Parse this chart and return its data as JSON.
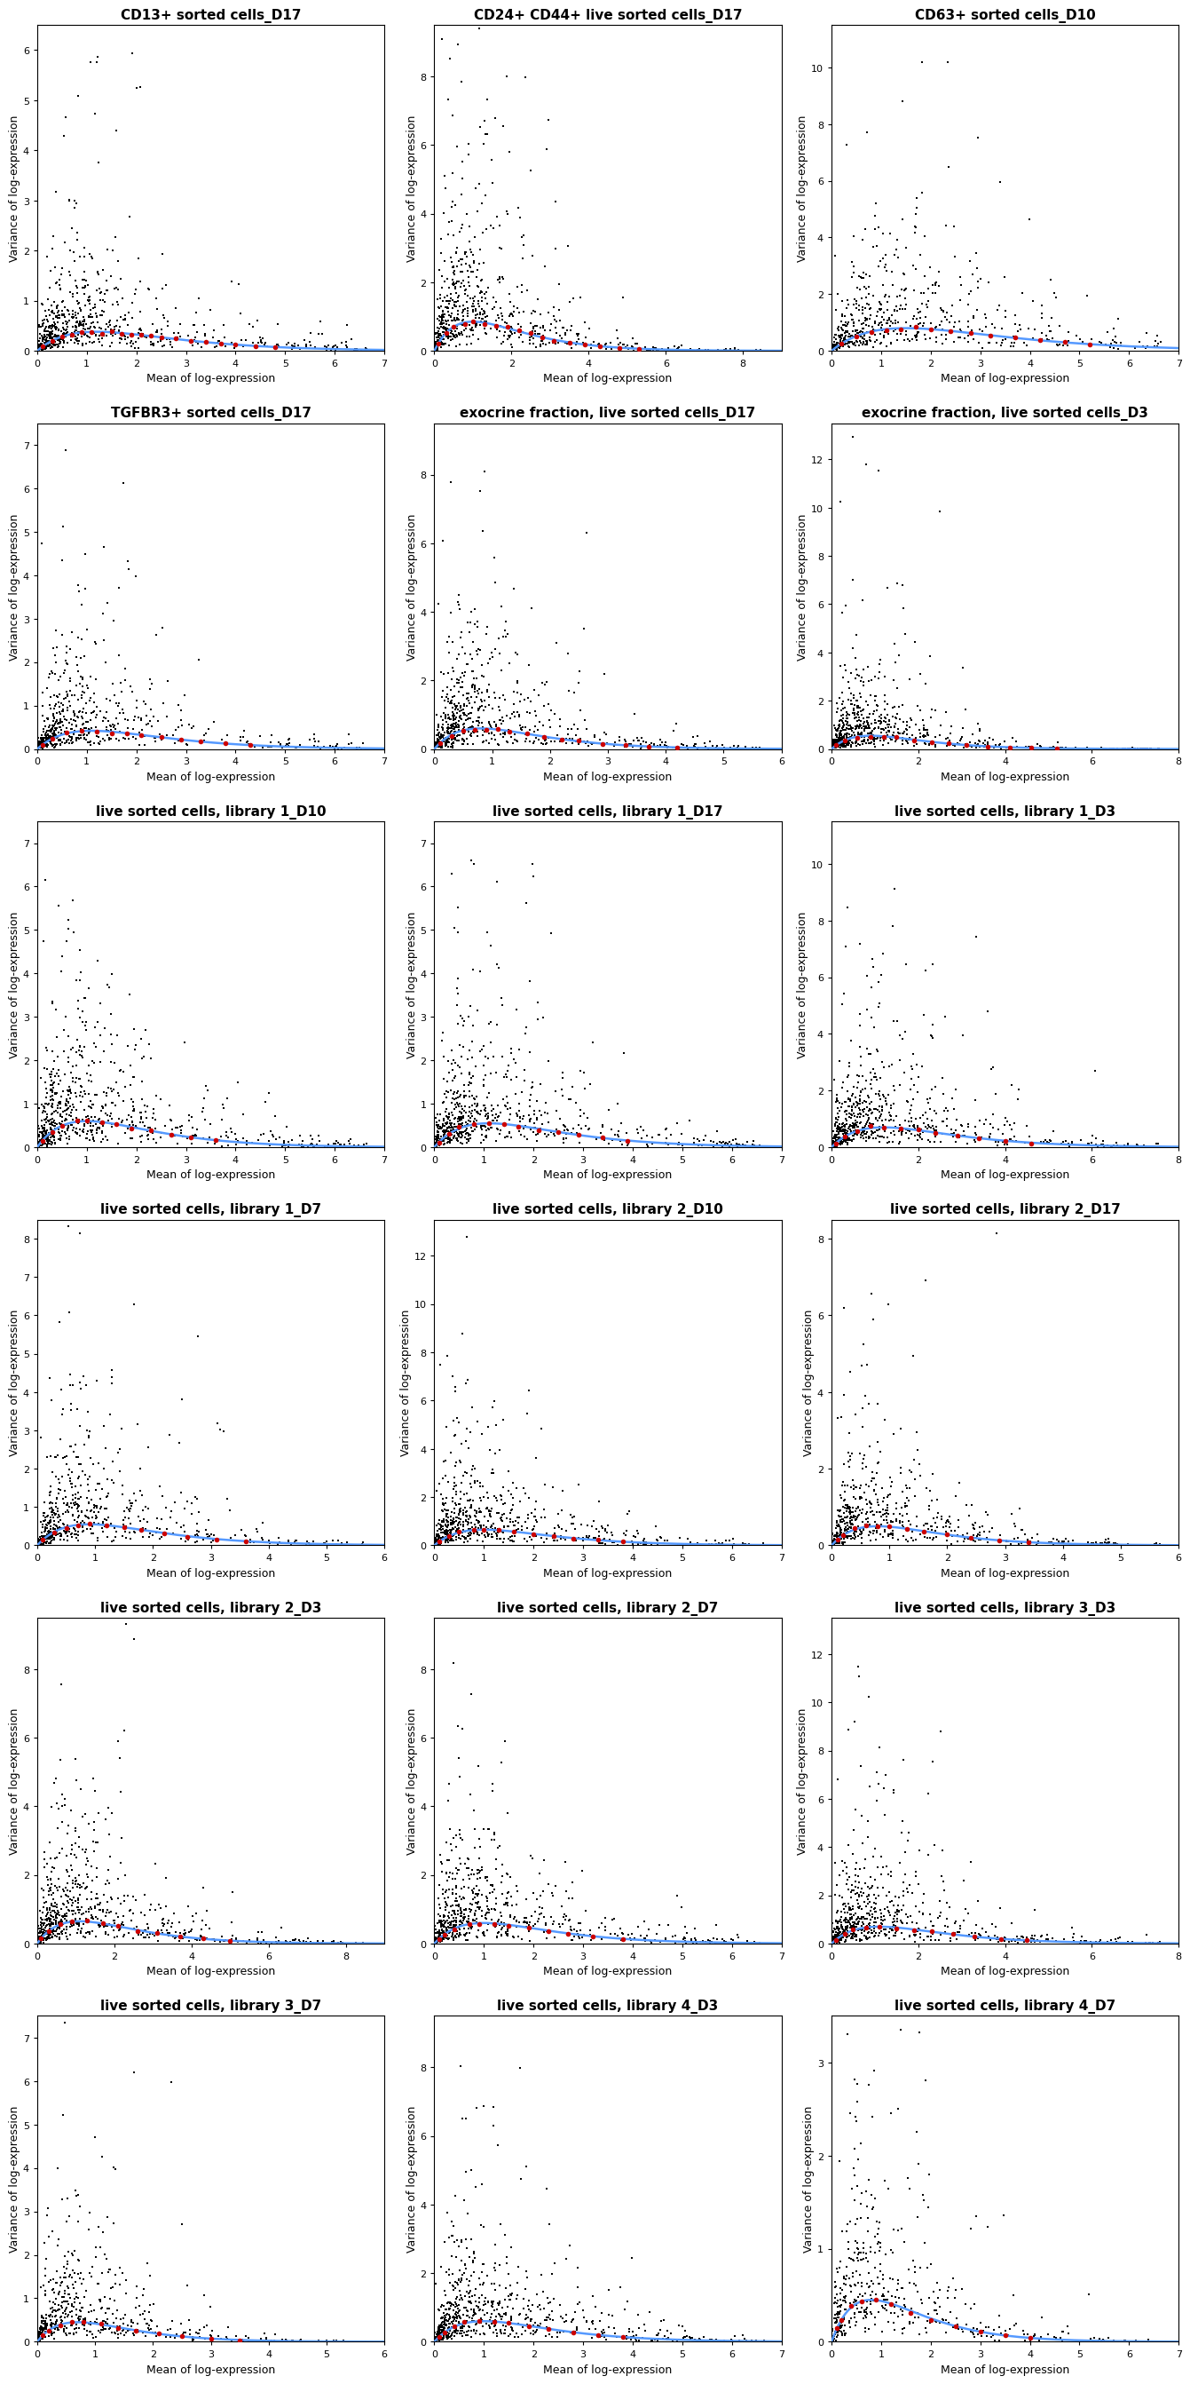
{
  "subplots": [
    {
      "title": "CD13+ sorted cells_D17",
      "xlim": [
        0,
        7
      ],
      "ylim": [
        -0.1,
        6.5
      ],
      "xticks": [
        0,
        1,
        2,
        3,
        4,
        5,
        6,
        7
      ],
      "yticks": [
        0,
        1,
        2,
        3,
        4,
        5,
        6
      ],
      "n_black": 700,
      "seed": 1,
      "mean_scale": 1.0,
      "var_max_mult": 4.0,
      "spike_means": [
        0.1,
        0.3,
        0.5,
        0.7,
        0.9,
        1.1,
        1.3,
        1.5,
        1.7,
        1.9,
        2.1,
        2.3,
        2.5,
        2.8,
        3.1,
        3.4,
        3.7,
        4.0,
        4.4,
        4.8
      ],
      "trend_peak_x": 1.2,
      "trend_peak_y": 0.38
    },
    {
      "title": "CD24+ CD44+ live sorted cells_D17",
      "xlim": [
        0,
        9
      ],
      "ylim": [
        -0.1,
        9.5
      ],
      "xticks": [
        0,
        2,
        4,
        6,
        8
      ],
      "yticks": [
        0,
        2,
        4,
        6,
        8
      ],
      "n_black": 700,
      "seed": 2,
      "mean_scale": 1.2,
      "var_max_mult": 5.0,
      "spike_means": [
        0.1,
        0.3,
        0.5,
        0.8,
        1.0,
        1.3,
        1.6,
        1.9,
        2.2,
        2.5,
        2.8,
        3.1,
        3.5,
        3.9,
        4.3,
        4.8,
        5.3
      ],
      "trend_peak_x": 1.0,
      "trend_peak_y": 0.85
    },
    {
      "title": "CD63+ sorted cells_D10",
      "xlim": [
        0,
        7
      ],
      "ylim": [
        -0.1,
        11.5
      ],
      "xticks": [
        0,
        1,
        2,
        3,
        4,
        5,
        6,
        7
      ],
      "yticks": [
        0,
        2,
        4,
        6,
        8,
        10
      ],
      "n_black": 600,
      "seed": 3,
      "mean_scale": 1.3,
      "var_max_mult": 6.0,
      "spike_means": [
        0.2,
        0.5,
        0.8,
        1.1,
        1.4,
        1.7,
        2.0,
        2.4,
        2.8,
        3.2,
        3.7,
        4.2,
        4.7,
        5.2
      ],
      "trend_peak_x": 1.5,
      "trend_peak_y": 0.8
    },
    {
      "title": "TGFBR3+ sorted cells_D17",
      "xlim": [
        0,
        7
      ],
      "ylim": [
        -0.1,
        7.5
      ],
      "xticks": [
        0,
        1,
        2,
        3,
        4,
        5,
        6,
        7
      ],
      "yticks": [
        0,
        1,
        2,
        3,
        4,
        5,
        6,
        7
      ],
      "n_black": 600,
      "seed": 4,
      "mean_scale": 1.0,
      "var_max_mult": 4.5,
      "spike_means": [
        0.1,
        0.3,
        0.6,
        0.9,
        1.2,
        1.5,
        1.8,
        2.1,
        2.5,
        2.9,
        3.3,
        3.8,
        4.3
      ],
      "trend_peak_x": 1.1,
      "trend_peak_y": 0.42
    },
    {
      "title": "exocrine fraction, live sorted cells_D17",
      "xlim": [
        0,
        6
      ],
      "ylim": [
        -0.1,
        9.5
      ],
      "xticks": [
        0,
        1,
        2,
        3,
        4,
        5,
        6
      ],
      "yticks": [
        0,
        2,
        4,
        6,
        8
      ],
      "n_black": 700,
      "seed": 5,
      "mean_scale": 0.9,
      "var_max_mult": 5.0,
      "spike_means": [
        0.1,
        0.3,
        0.5,
        0.7,
        0.9,
        1.1,
        1.3,
        1.6,
        1.9,
        2.2,
        2.5,
        2.9,
        3.3,
        3.7,
        4.2
      ],
      "trend_peak_x": 0.8,
      "trend_peak_y": 0.6
    },
    {
      "title": "exocrine fraction, live sorted cells_D3",
      "xlim": [
        0,
        8
      ],
      "ylim": [
        -0.1,
        13.5
      ],
      "xticks": [
        0,
        2,
        4,
        6,
        8
      ],
      "yticks": [
        0,
        2,
        4,
        6,
        8,
        10,
        12
      ],
      "n_black": 700,
      "seed": 6,
      "mean_scale": 1.1,
      "var_max_mult": 6.0,
      "spike_means": [
        0.1,
        0.3,
        0.6,
        0.9,
        1.2,
        1.5,
        1.9,
        2.3,
        2.7,
        3.1,
        3.6,
        4.1,
        4.6,
        5.2
      ],
      "trend_peak_x": 0.9,
      "trend_peak_y": 0.55
    },
    {
      "title": "live sorted cells, library 1_D10",
      "xlim": [
        0,
        7
      ],
      "ylim": [
        -0.1,
        7.5
      ],
      "xticks": [
        0,
        1,
        2,
        3,
        4,
        5,
        6,
        7
      ],
      "yticks": [
        0,
        1,
        2,
        3,
        4,
        5,
        6,
        7
      ],
      "n_black": 700,
      "seed": 7,
      "mean_scale": 1.1,
      "var_max_mult": 4.0,
      "spike_means": [
        0.1,
        0.3,
        0.5,
        0.8,
        1.0,
        1.3,
        1.6,
        1.9,
        2.3,
        2.7,
        3.1,
        3.6
      ],
      "trend_peak_x": 1.0,
      "trend_peak_y": 0.6
    },
    {
      "title": "live sorted cells, library 1_D17",
      "xlim": [
        0,
        7
      ],
      "ylim": [
        -0.1,
        7.5
      ],
      "xticks": [
        0,
        1,
        2,
        3,
        4,
        5,
        6,
        7
      ],
      "yticks": [
        0,
        1,
        2,
        3,
        4,
        5,
        6,
        7
      ],
      "n_black": 700,
      "seed": 8,
      "mean_scale": 1.1,
      "var_max_mult": 4.0,
      "spike_means": [
        0.1,
        0.3,
        0.5,
        0.8,
        1.1,
        1.4,
        1.7,
        2.1,
        2.5,
        2.9,
        3.4,
        3.9
      ],
      "trend_peak_x": 1.1,
      "trend_peak_y": 0.55
    },
    {
      "title": "live sorted cells, library 1_D3",
      "xlim": [
        0,
        8
      ],
      "ylim": [
        -0.1,
        11.5
      ],
      "xticks": [
        0,
        2,
        4,
        6,
        8
      ],
      "yticks": [
        0,
        2,
        4,
        6,
        8,
        10
      ],
      "n_black": 700,
      "seed": 9,
      "mean_scale": 1.2,
      "var_max_mult": 5.5,
      "spike_means": [
        0.1,
        0.3,
        0.6,
        0.9,
        1.2,
        1.6,
        2.0,
        2.4,
        2.9,
        3.4,
        4.0,
        4.6
      ],
      "trend_peak_x": 1.2,
      "trend_peak_y": 0.7
    },
    {
      "title": "live sorted cells, library 1_D7",
      "xlim": [
        0,
        6
      ],
      "ylim": [
        -0.1,
        8.5
      ],
      "xticks": [
        0,
        1,
        2,
        3,
        4,
        5,
        6
      ],
      "yticks": [
        0,
        1,
        2,
        3,
        4,
        5,
        6,
        7,
        8
      ],
      "n_black": 600,
      "seed": 10,
      "mean_scale": 0.9,
      "var_max_mult": 4.5,
      "spike_means": [
        0.1,
        0.3,
        0.5,
        0.7,
        0.9,
        1.2,
        1.5,
        1.8,
        2.2,
        2.6,
        3.1,
        3.6
      ],
      "trend_peak_x": 0.9,
      "trend_peak_y": 0.55
    },
    {
      "title": "live sorted cells, library 2_D10",
      "xlim": [
        0,
        7
      ],
      "ylim": [
        -0.1,
        13.5
      ],
      "xticks": [
        0,
        1,
        2,
        3,
        4,
        5,
        6,
        7
      ],
      "yticks": [
        0,
        2,
        4,
        6,
        8,
        10,
        12
      ],
      "n_black": 700,
      "seed": 11,
      "mean_scale": 1.0,
      "var_max_mult": 6.0,
      "spike_means": [
        0.1,
        0.3,
        0.5,
        0.8,
        1.0,
        1.3,
        1.6,
        2.0,
        2.4,
        2.8,
        3.3,
        3.8
      ],
      "trend_peak_x": 1.0,
      "trend_peak_y": 0.65
    },
    {
      "title": "live sorted cells, library 2_D17",
      "xlim": [
        0,
        6
      ],
      "ylim": [
        -0.1,
        8.5
      ],
      "xticks": [
        0,
        1,
        2,
        3,
        4,
        5,
        6
      ],
      "yticks": [
        0,
        2,
        4,
        6,
        8
      ],
      "n_black": 600,
      "seed": 12,
      "mean_scale": 0.9,
      "var_max_mult": 4.5,
      "spike_means": [
        0.1,
        0.2,
        0.4,
        0.6,
        0.8,
        1.0,
        1.3,
        1.6,
        2.0,
        2.4,
        2.9,
        3.4
      ],
      "trend_peak_x": 0.8,
      "trend_peak_y": 0.5
    },
    {
      "title": "live sorted cells, library 2_D3",
      "xlim": [
        0,
        9
      ],
      "ylim": [
        -0.1,
        9.5
      ],
      "xticks": [
        0,
        2,
        4,
        6,
        8
      ],
      "yticks": [
        0,
        2,
        4,
        6,
        8
      ],
      "n_black": 700,
      "seed": 13,
      "mean_scale": 1.3,
      "var_max_mult": 5.0,
      "spike_means": [
        0.1,
        0.3,
        0.6,
        0.9,
        1.3,
        1.7,
        2.1,
        2.6,
        3.1,
        3.7,
        4.3,
        5.0
      ],
      "trend_peak_x": 1.1,
      "trend_peak_y": 0.65
    },
    {
      "title": "live sorted cells, library 2_D7",
      "xlim": [
        0,
        7
      ],
      "ylim": [
        -0.1,
        9.5
      ],
      "xticks": [
        0,
        1,
        2,
        3,
        4,
        5,
        6,
        7
      ],
      "yticks": [
        0,
        2,
        4,
        6,
        8
      ],
      "n_black": 700,
      "seed": 14,
      "mean_scale": 1.0,
      "var_max_mult": 5.0,
      "spike_means": [
        0.1,
        0.2,
        0.4,
        0.7,
        0.9,
        1.2,
        1.5,
        1.9,
        2.3,
        2.7,
        3.2,
        3.8
      ],
      "trend_peak_x": 1.0,
      "trend_peak_y": 0.6
    },
    {
      "title": "live sorted cells, library 3_D3",
      "xlim": [
        0,
        8
      ],
      "ylim": [
        -0.1,
        13.5
      ],
      "xticks": [
        0,
        2,
        4,
        6,
        8
      ],
      "yticks": [
        0,
        2,
        4,
        6,
        8,
        10,
        12
      ],
      "n_black": 700,
      "seed": 15,
      "mean_scale": 1.2,
      "var_max_mult": 6.0,
      "spike_means": [
        0.1,
        0.3,
        0.5,
        0.8,
        1.1,
        1.5,
        1.9,
        2.3,
        2.8,
        3.3,
        3.9,
        4.5
      ],
      "trend_peak_x": 1.1,
      "trend_peak_y": 0.7
    },
    {
      "title": "live sorted cells, library 3_D7",
      "xlim": [
        0,
        6
      ],
      "ylim": [
        -0.1,
        7.5
      ],
      "xticks": [
        0,
        1,
        2,
        3,
        4,
        5,
        6
      ],
      "yticks": [
        0,
        1,
        2,
        3,
        4,
        5,
        6,
        7
      ],
      "n_black": 550,
      "seed": 16,
      "mean_scale": 0.9,
      "var_max_mult": 4.0,
      "spike_means": [
        0.1,
        0.2,
        0.4,
        0.6,
        0.8,
        1.1,
        1.4,
        1.7,
        2.1,
        2.5,
        3.0,
        3.5
      ],
      "trend_peak_x": 0.7,
      "trend_peak_y": 0.45
    },
    {
      "title": "live sorted cells, library 4_D3",
      "xlim": [
        0,
        7
      ],
      "ylim": [
        -0.1,
        9.5
      ],
      "xticks": [
        0,
        1,
        2,
        3,
        4,
        5,
        6,
        7
      ],
      "yticks": [
        0,
        2,
        4,
        6,
        8
      ],
      "n_black": 700,
      "seed": 17,
      "mean_scale": 1.1,
      "var_max_mult": 5.0,
      "spike_means": [
        0.1,
        0.2,
        0.4,
        0.6,
        0.9,
        1.2,
        1.5,
        1.9,
        2.3,
        2.8,
        3.3,
        3.8
      ],
      "trend_peak_x": 1.0,
      "trend_peak_y": 0.6
    },
    {
      "title": "live sorted cells, library 4_D7",
      "xlim": [
        0,
        7
      ],
      "ylim": [
        -0.1,
        3.5
      ],
      "xticks": [
        0,
        1,
        2,
        3,
        4,
        5,
        6,
        7
      ],
      "yticks": [
        0,
        1,
        2,
        3
      ],
      "n_black": 500,
      "seed": 18,
      "mean_scale": 1.1,
      "var_max_mult": 2.5,
      "spike_means": [
        0.1,
        0.2,
        0.4,
        0.6,
        0.9,
        1.2,
        1.6,
        2.0,
        2.5,
        3.0,
        3.5,
        4.0
      ],
      "trend_peak_x": 0.8,
      "trend_peak_y": 0.45
    }
  ],
  "black_color": "#000000",
  "red_color": "#CC0000",
  "blue_color": "#5599FF",
  "xlabel": "Mean of log-expression",
  "ylabel": "Variance of log-expression",
  "title_fontsize": 11,
  "axis_fontsize": 9,
  "tick_fontsize": 8,
  "point_size": 4,
  "spike_size": 16,
  "background_color": "#ffffff"
}
